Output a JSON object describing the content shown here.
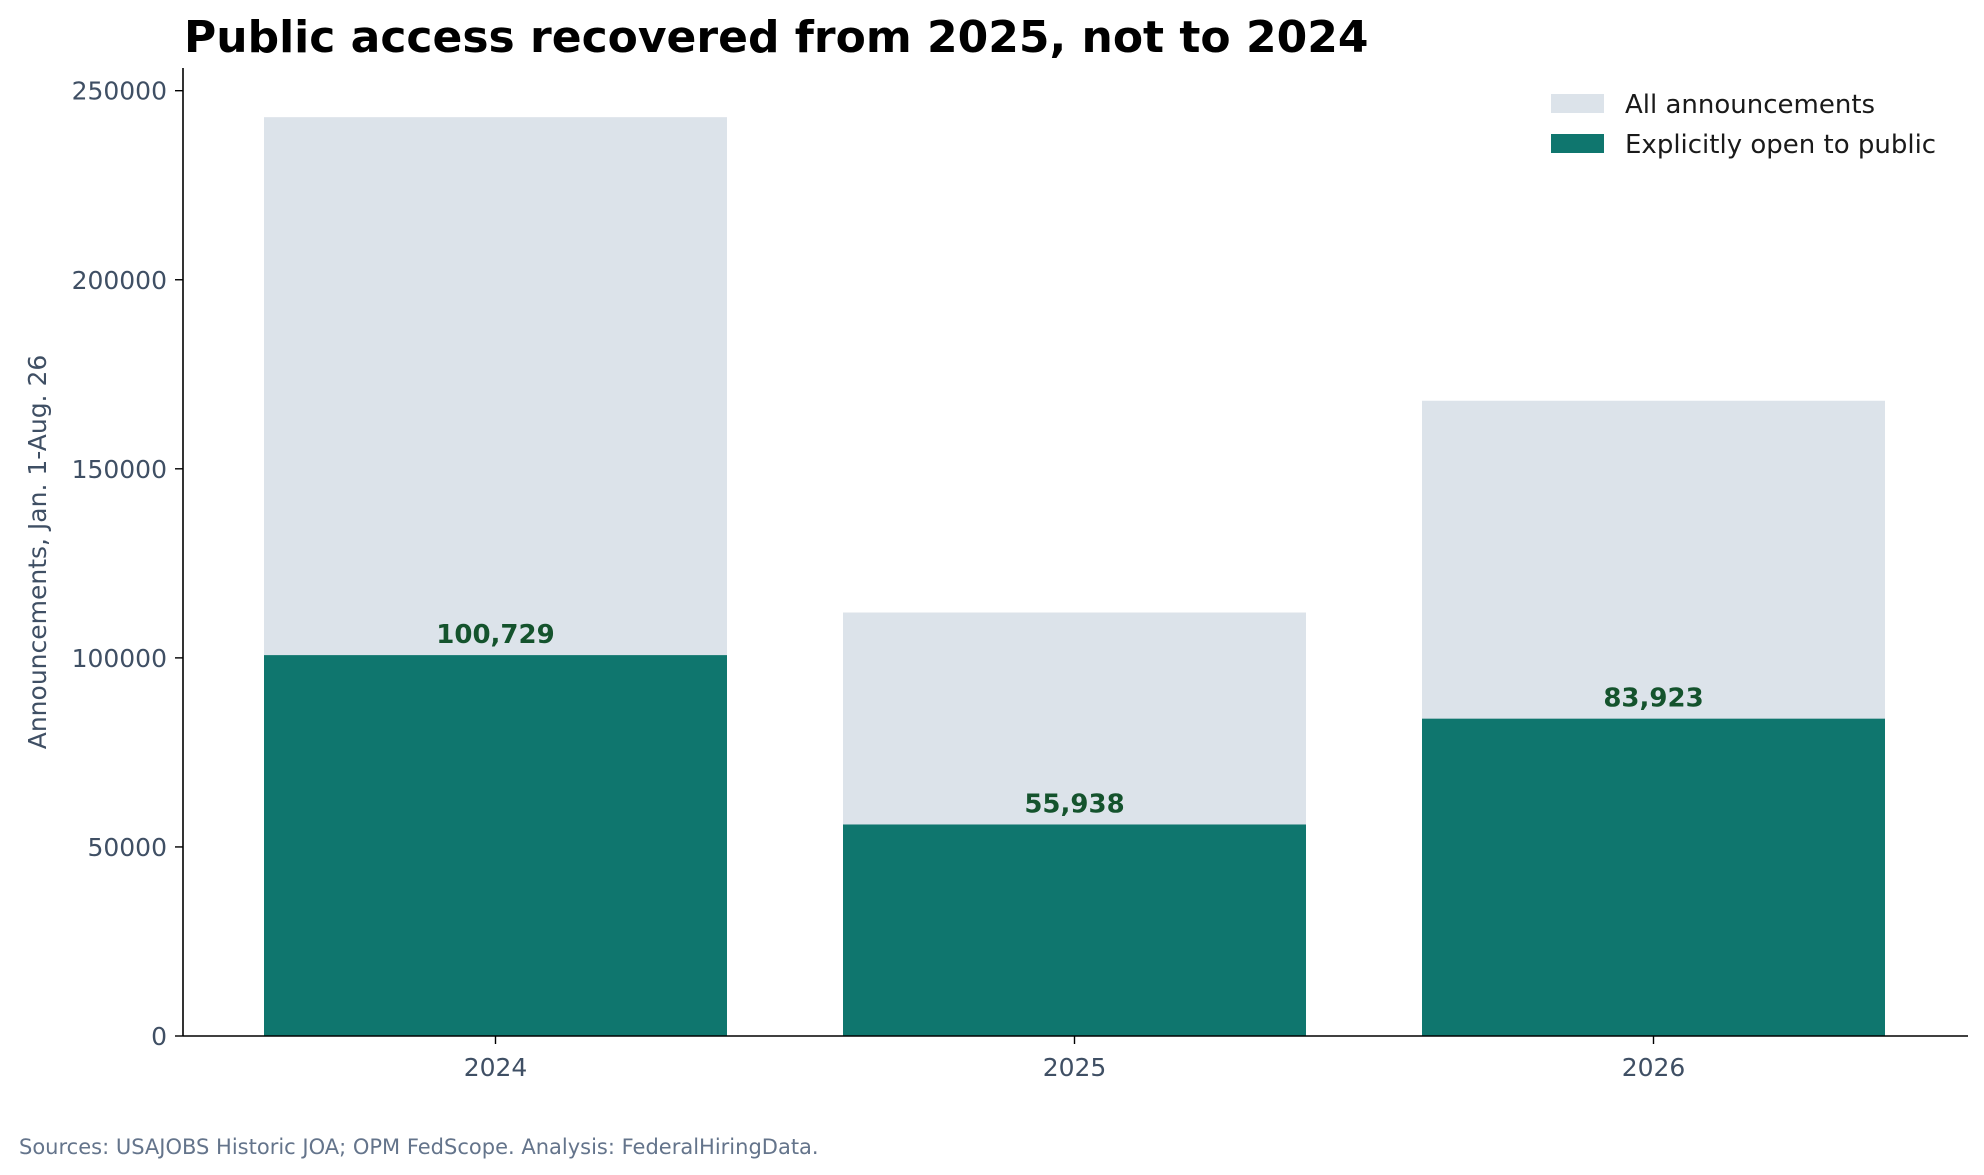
{
  "chart_data": {
    "type": "bar",
    "title": "Public access recovered from 2025, not to 2024",
    "xlabel": "",
    "ylabel": "Announcements, Jan. 1-Aug. 26",
    "categories": [
      "2024",
      "2025",
      "2026"
    ],
    "series": [
      {
        "name": "All announcements",
        "values": [
          243000,
          112000,
          168000
        ],
        "color": "#dce3ea"
      },
      {
        "name": "Explicitly open to public",
        "values": [
          100729,
          55938,
          83923
        ],
        "color": "#0f766e"
      }
    ],
    "data_labels": [
      "100,729",
      "55,938",
      "83,923"
    ],
    "data_label_color": "#14532d",
    "y_ticks": [
      0,
      50000,
      100000,
      150000,
      200000,
      250000
    ],
    "y_tick_labels": [
      "0",
      "50000",
      "100000",
      "150000",
      "200000",
      "250000"
    ],
    "ylim": [
      0,
      256000
    ],
    "grid": false,
    "legend_position": "top-right",
    "overlaid": true
  },
  "source_note": "Sources: USAJOBS Historic JOA; OPM FedScope. Analysis: FederalHiringData."
}
